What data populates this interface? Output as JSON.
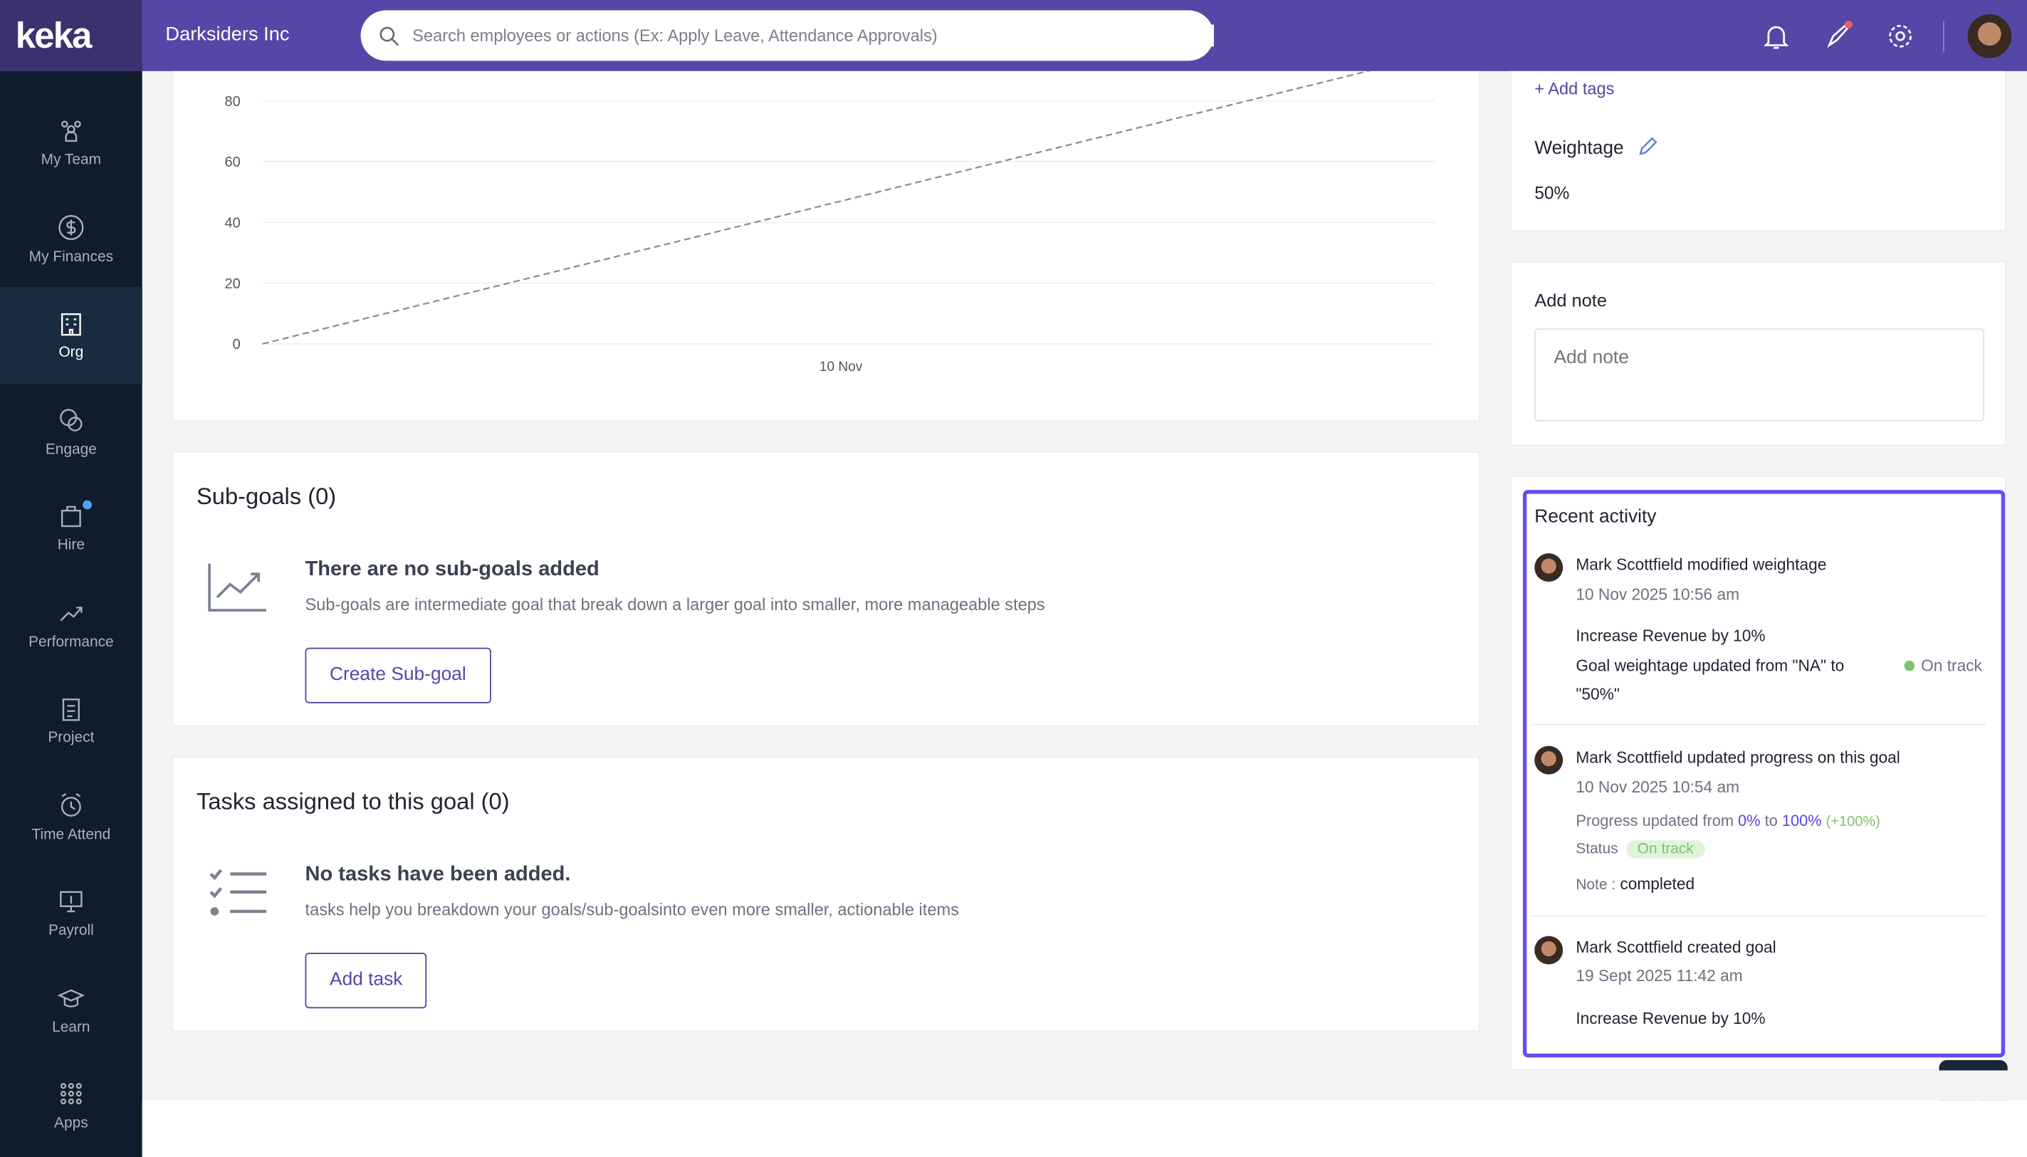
{
  "header": {
    "logo": "keka",
    "company": "Darksiders Inc",
    "search_placeholder": "Search employees or actions (Ex: Apply Leave, Attendance Approvals)"
  },
  "sidebar": {
    "items": [
      {
        "label": "My Team",
        "icon": "team-icon"
      },
      {
        "label": "My Finances",
        "icon": "dollar-icon"
      },
      {
        "label": "Org",
        "icon": "building-icon",
        "active": true
      },
      {
        "label": "Engage",
        "icon": "chat-icon"
      },
      {
        "label": "Hire",
        "icon": "briefcase-icon",
        "badge": true
      },
      {
        "label": "Performance",
        "icon": "trend-icon"
      },
      {
        "label": "Project",
        "icon": "clipboard-icon"
      },
      {
        "label": "Time Attend",
        "icon": "clock-icon"
      },
      {
        "label": "Payroll",
        "icon": "monitor-icon"
      },
      {
        "label": "Learn",
        "icon": "graduation-icon"
      },
      {
        "label": "Apps",
        "icon": "grid-icon"
      }
    ]
  },
  "chart_data": {
    "type": "line",
    "y_ticks": [
      "0",
      "20",
      "40",
      "60",
      "80"
    ],
    "x_ticks": [
      "10 Nov"
    ],
    "ylim": [
      0,
      90
    ],
    "grid": true,
    "series": [
      {
        "style": "dashed",
        "color": "#8a8a8a",
        "y": [
          0,
          100
        ]
      }
    ]
  },
  "subgoals": {
    "title": "Sub-goals (0)",
    "empty_title": "There are no sub-goals added",
    "empty_desc": "Sub-goals are intermediate goal that break down a larger goal into smaller, more manageable steps",
    "button": "Create Sub-goal"
  },
  "tasks": {
    "title": "Tasks assigned to this goal (0)",
    "empty_title": "No tasks have been added.",
    "empty_desc": "tasks help you breakdown your goals/sub-goalsinto even more smaller, actionable items",
    "button": "Add task"
  },
  "right": {
    "add_tags": "+ Add tags",
    "weightage_label": "Weightage",
    "weightage_value": "50%",
    "note_title": "Add note",
    "note_placeholder": "Add note"
  },
  "activity": {
    "title": "Recent activity",
    "items": [
      {
        "user": "Mark Scottfield",
        "action": "modified weightage",
        "time": "10 Nov 2025 10:56 am",
        "goal": "Increase Revenue by 10%",
        "detail": "Goal weightage updated from \"NA\" to \"50%\"",
        "status": "On track"
      },
      {
        "user": "Mark Scottfield",
        "action": "updated progress on this goal",
        "time": "10 Nov 2025 10:54 am",
        "progress_prefix": "Progress updated from",
        "from": "0%",
        "to_word": "to",
        "to": "100%",
        "delta": "(+100%)",
        "status_label": "Status",
        "status": "On track",
        "note_label": "Note :",
        "note": "completed"
      },
      {
        "user": "Mark Scottfield",
        "action": "created goal",
        "time": "19 Sept 2025 11:42 am",
        "goal": "Increase Revenue by 10%"
      }
    ]
  },
  "colors": {
    "header": "#5547a8",
    "sidebar": "#0f1c2b",
    "accent": "#5547a8",
    "highlight": "#6a4cf5",
    "on_track": "#7cc26a"
  }
}
